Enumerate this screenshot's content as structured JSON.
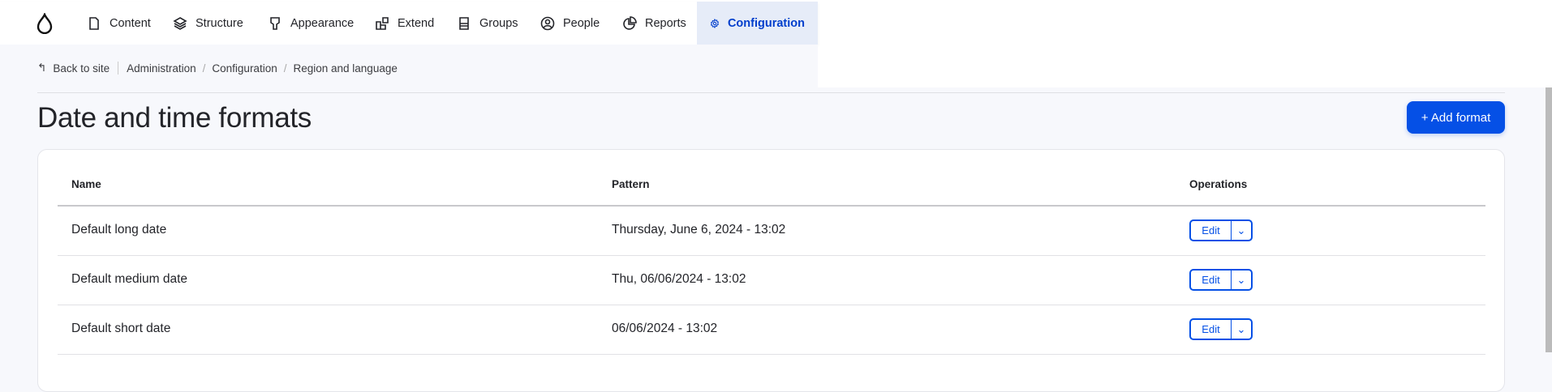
{
  "nav": {
    "items": [
      {
        "label": "Content",
        "icon": "document-icon"
      },
      {
        "label": "Structure",
        "icon": "layers-icon"
      },
      {
        "label": "Appearance",
        "icon": "brush-icon"
      },
      {
        "label": "Extend",
        "icon": "puzzle-icon"
      },
      {
        "label": "Groups",
        "icon": "groups-icon"
      },
      {
        "label": "People",
        "icon": "person-icon"
      },
      {
        "label": "Reports",
        "icon": "pie-chart-icon"
      },
      {
        "label": "Configuration",
        "icon": "gear-icon",
        "active": true
      }
    ]
  },
  "breadcrumb": {
    "back": "Back to site",
    "items": [
      "Administration",
      "Configuration",
      "Region and language"
    ]
  },
  "page": {
    "title": "Date and time formats",
    "add_button": "+ Add format"
  },
  "table": {
    "headers": [
      "Name",
      "Pattern",
      "Operations"
    ],
    "rows": [
      {
        "name": "Default long date",
        "pattern": "Thursday, June 6, 2024 - 13:02",
        "op": "Edit"
      },
      {
        "name": "Default medium date",
        "pattern": "Thu, 06/06/2024 - 13:02",
        "op": "Edit"
      },
      {
        "name": "Default short date",
        "pattern": "06/06/2024 - 13:02",
        "op": "Edit"
      }
    ]
  },
  "colors": {
    "accent": "#0550e6",
    "active_bg": "#e6ecf8"
  }
}
